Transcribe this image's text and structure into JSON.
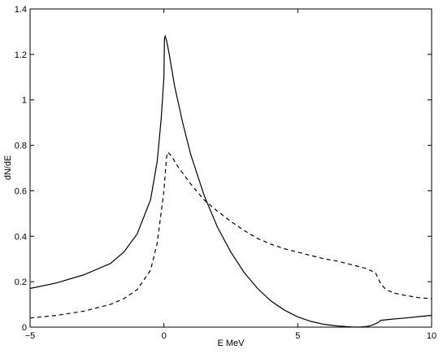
{
  "chart_data": {
    "type": "line",
    "title": "",
    "xlabel": "E MeV",
    "ylabel": "dN/dE",
    "xlim": [
      -5,
      10
    ],
    "ylim": [
      0,
      1.4
    ],
    "x_ticks": [
      -5,
      0,
      5,
      10
    ],
    "x_tick_labels": [
      "−5",
      "0",
      "5",
      "10"
    ],
    "y_ticks": [
      0,
      0.2,
      0.4,
      0.6,
      0.8,
      1.0,
      1.2,
      1.4
    ],
    "y_tick_labels": [
      "0",
      "0.2",
      "0.4",
      "0.6",
      "0.8",
      "1",
      "1.2",
      "1.4"
    ],
    "grid": false,
    "legend": "none",
    "series": [
      {
        "line_style": "solid",
        "color": "#000000",
        "x": [
          -5,
          -4,
          -3,
          -2,
          -1.5,
          -1,
          -0.5,
          -0.25,
          -0.1,
          0,
          0.02,
          0.05,
          0.1,
          0.2,
          0.4,
          0.7,
          1,
          1.5,
          2,
          2.5,
          3,
          3.5,
          4,
          4.5,
          5,
          5.5,
          6,
          6.5,
          7,
          7.3,
          7.6,
          7.8,
          8,
          8.1,
          8.5,
          9,
          9.5,
          10
        ],
        "y": [
          0.17,
          0.195,
          0.23,
          0.28,
          0.33,
          0.41,
          0.56,
          0.73,
          0.92,
          1.1,
          1.27,
          1.28,
          1.26,
          1.2,
          1.06,
          0.9,
          0.76,
          0.58,
          0.44,
          0.33,
          0.24,
          0.17,
          0.115,
          0.075,
          0.045,
          0.025,
          0.012,
          0.005,
          0.001,
          0.0,
          0.003,
          0.01,
          0.02,
          0.03,
          0.035,
          0.04,
          0.046,
          0.052
        ]
      },
      {
        "line_style": "dashed",
        "color": "#000000",
        "x": [
          -5,
          -4,
          -3,
          -2,
          -1.5,
          -1,
          -0.5,
          -0.25,
          0,
          0.1,
          0.15,
          0.3,
          0.5,
          1,
          1.5,
          2,
          2.5,
          3,
          3.5,
          4,
          4.5,
          5,
          5.5,
          6,
          6.5,
          7,
          7.5,
          7.9,
          8.1,
          8.3,
          8.6,
          9,
          9.5,
          10
        ],
        "y": [
          0.04,
          0.052,
          0.07,
          0.1,
          0.125,
          0.165,
          0.25,
          0.37,
          0.6,
          0.75,
          0.77,
          0.75,
          0.71,
          0.63,
          0.56,
          0.51,
          0.465,
          0.425,
          0.39,
          0.365,
          0.345,
          0.33,
          0.315,
          0.3,
          0.29,
          0.275,
          0.26,
          0.24,
          0.19,
          0.165,
          0.15,
          0.14,
          0.13,
          0.125
        ]
      }
    ]
  }
}
